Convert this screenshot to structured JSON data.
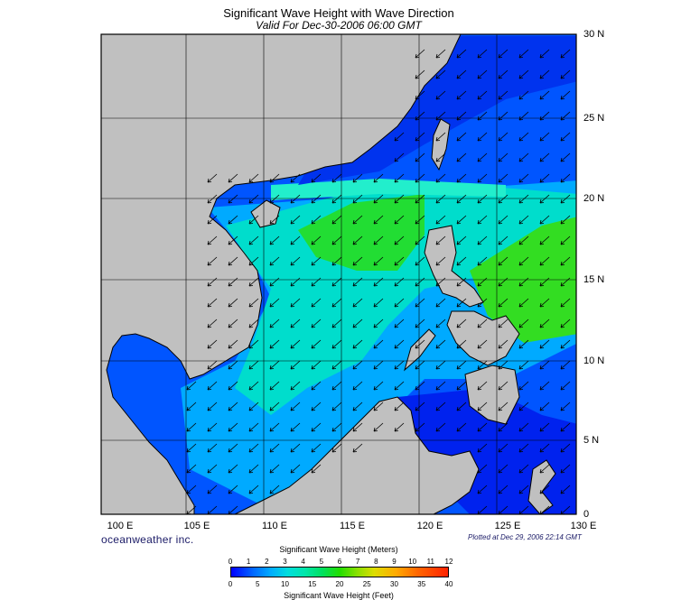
{
  "title": "Significant Wave Height with Wave Direction",
  "subtitle": "Valid For Dec-30-2006 06:00 GMT",
  "latitude_labels": [
    "30 N",
    "25 N",
    "20 N",
    "15 N",
    "10 N",
    "5 N",
    "0"
  ],
  "longitude_labels": [
    "100 E",
    "105 E",
    "110 E",
    "115 E",
    "120 E",
    "125 E",
    "130 E"
  ],
  "brand": "oceanweather inc.",
  "plotted_note": "Plotted at Dec 29, 2006 22:14 GMT",
  "colorbar": {
    "title_meters": "Significant Wave Height (Meters)",
    "title_feet": "Significant Wave Height (Feet)",
    "meters_ticks": [
      "0",
      "1",
      "2",
      "3",
      "4",
      "5",
      "6",
      "7",
      "8",
      "9",
      "10",
      "11",
      "12"
    ],
    "feet_ticks": [
      "0",
      "5",
      "10",
      "15",
      "20",
      "25",
      "30",
      "35",
      "40"
    ]
  },
  "colors": {
    "land": "#c0c0c0",
    "low_waves": "#0000ff",
    "mid_waves": "#00ccff",
    "high_waves": "#22dd00",
    "arrows": "#000000"
  },
  "wave_direction": "southwest"
}
